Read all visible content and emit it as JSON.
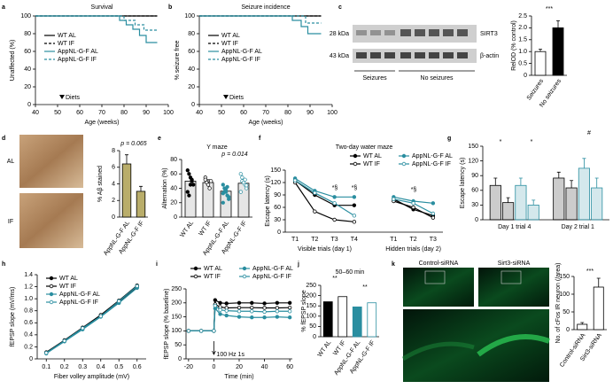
{
  "chart_data": [
    {
      "panel": "a",
      "type": "line",
      "title": "Survival",
      "xlabel": "Age (weeks)",
      "ylabel": "Unaffected (%)",
      "xlim": [
        40,
        100
      ],
      "xticks": [
        40,
        50,
        60,
        70,
        80,
        90,
        100
      ],
      "ylim": [
        0,
        100
      ],
      "yticks": [
        0,
        20,
        40,
        60,
        80,
        100
      ],
      "annotation": {
        "text": "Diets",
        "x": 52
      },
      "series": [
        {
          "name": "WT AL",
          "color": "#000000",
          "dash": false,
          "x": [
            40,
            95
          ],
          "values": [
            100,
            100
          ]
        },
        {
          "name": "WT IF",
          "color": "#000000",
          "dash": true,
          "x": [
            40,
            95
          ],
          "values": [
            100,
            100
          ]
        },
        {
          "name": "AppNL-G-F AL",
          "color": "#2a8ea0",
          "dash": false,
          "x": [
            40,
            78,
            78,
            81,
            81,
            84,
            84,
            87,
            87,
            90,
            90,
            95
          ],
          "values": [
            100,
            100,
            95,
            95,
            90,
            90,
            85,
            85,
            78,
            78,
            70,
            70
          ]
        },
        {
          "name": "AppNL-G-F IF",
          "color": "#2a8ea0",
          "dash": true,
          "x": [
            40,
            80,
            80,
            85,
            85,
            89,
            89,
            95
          ],
          "values": [
            100,
            100,
            95,
            95,
            90,
            90,
            84,
            84
          ]
        }
      ]
    },
    {
      "panel": "b",
      "type": "line",
      "title": "Seizure incidence",
      "xlabel": "Age (weeks)",
      "ylabel": "% seizure free",
      "xlim": [
        40,
        100
      ],
      "xticks": [
        40,
        50,
        60,
        70,
        80,
        90,
        100
      ],
      "ylim": [
        0,
        100
      ],
      "yticks": [
        0,
        20,
        40,
        60,
        80,
        100
      ],
      "annotation": {
        "text": "Diets",
        "x": 52
      },
      "series": [
        {
          "name": "WT AL",
          "color": "#000000",
          "dash": false,
          "x": [
            40,
            95
          ],
          "values": [
            100,
            100
          ]
        },
        {
          "name": "WT IF",
          "color": "#000000",
          "dash": true,
          "x": [
            40,
            95
          ],
          "values": [
            100,
            100
          ]
        },
        {
          "name": "AppNL-G-F AL",
          "color": "#2a8ea0",
          "dash": false,
          "x": [
            40,
            82,
            82,
            86,
            86,
            89,
            89,
            95
          ],
          "values": [
            100,
            100,
            95,
            95,
            88,
            88,
            80,
            80
          ]
        },
        {
          "name": "AppNL-G-F IF",
          "color": "#2a8ea0",
          "dash": true,
          "x": [
            40,
            88,
            88,
            95
          ],
          "values": [
            100,
            100,
            92,
            92
          ]
        }
      ]
    },
    {
      "panel": "c",
      "type": "bar",
      "image_labels": [
        "28 kDa",
        "43 kDa",
        "SIRT3",
        "β-actin",
        "Seizures",
        "No seizures"
      ],
      "ylabel": "RelOD (% control)",
      "ylim": [
        0,
        2.5
      ],
      "yticks": [
        0,
        0.5,
        {
          "value": 1,
          "label": "1.0"
        },
        1.5,
        {
          "value": 2,
          "label": "2.0"
        },
        2.5
      ],
      "categories": [
        "Seizures",
        "No seizures"
      ],
      "values": [
        1,
        2
      ],
      "errors": [
        0.1,
        0.3
      ],
      "colors": [
        "#ffffff",
        "#000000"
      ],
      "rotate_labels": true,
      "annotations": [
        "***"
      ]
    },
    {
      "panel": "d",
      "type": "bar",
      "image_labels": [
        "AL",
        "IF"
      ],
      "ylabel": "% Aβ stained",
      "ylim": [
        0,
        8
      ],
      "yticks": [
        0,
        2,
        4,
        6,
        8
      ],
      "categories": [
        "AppNL-G-F AL",
        "AppNL-G-F IF"
      ],
      "values": [
        6.4,
        3.1
      ],
      "errors": [
        1.1,
        0.6
      ],
      "colors": [
        "#b9ad6a",
        "#b9ad6a"
      ],
      "rotate_labels": true,
      "annotations": [
        "p = 0.065"
      ]
    },
    {
      "panel": "e",
      "type": "bar",
      "title": "Y maze",
      "ylabel": "Alternation (%)",
      "ylim": [
        0,
        80
      ],
      "yticks": [
        0,
        20,
        40,
        60,
        80
      ],
      "categories": [
        "WT AL",
        "WT IF",
        "AppNL-G-F AL",
        "AppNL-G-F IF"
      ],
      "values": [
        50,
        48,
        36,
        47
      ],
      "errors": [
        5,
        4,
        4,
        4
      ],
      "colors": [
        "#e6e6e6",
        "#e6e6e6",
        "#e6e6e6",
        "#e6e6e6"
      ],
      "point_colors": [
        "#000000",
        "#ffffff",
        "#2a8ea0",
        "#ffffff"
      ],
      "point_edges": [
        "#000000",
        "#000000",
        "#2a8ea0",
        "#2a8ea0"
      ],
      "points": [
        [
          65,
          60,
          55,
          50,
          45,
          35,
          30,
          45,
          52
        ],
        [
          55,
          48,
          45,
          40,
          50,
          52
        ],
        [
          45,
          40,
          35,
          30,
          25,
          20,
          35,
          38,
          42,
          28,
          33
        ],
        [
          60,
          55,
          50,
          45,
          40,
          35,
          50,
          48,
          52,
          44
        ]
      ],
      "rotate_labels": true,
      "annotations": [
        "p = 0.014"
      ]
    },
    {
      "panel": "f",
      "type": "line",
      "title": "Two-day water maze",
      "ylabel": "Escape latency (s)",
      "ylim": [
        0,
        150
      ],
      "yticks": [
        0,
        30,
        60,
        90,
        120,
        150
      ],
      "categories": [
        "T1",
        "T2",
        "T3",
        "T4",
        null,
        "T1",
        "T2",
        "T3"
      ],
      "groups": [
        "Visible trials (day 1)",
        "Hidden trials (day 2)"
      ],
      "annotations": [
        "*§",
        "*§",
        "*§"
      ],
      "series": [
        {
          "name": "WT AL",
          "color": "#000000",
          "dash": false,
          "marker": "circle",
          "values": [
            125,
            90,
            65,
            65,
            null,
            80,
            55,
            40
          ]
        },
        {
          "name": "WT IF",
          "color": "#000000",
          "dash": false,
          "marker": "circle-open",
          "values": [
            120,
            50,
            30,
            25,
            null,
            75,
            60,
            35
          ]
        },
        {
          "name": "AppNL-G-F AL",
          "color": "#2a8ea0",
          "dash": false,
          "marker": "circle",
          "values": [
            130,
            100,
            85,
            85,
            null,
            85,
            75,
            70
          ]
        },
        {
          "name": "AppNL-G-F IF",
          "color": "#2a8ea0",
          "dash": false,
          "marker": "circle-open",
          "values": [
            125,
            95,
            70,
            40,
            null,
            80,
            70,
            45
          ]
        }
      ]
    },
    {
      "panel": "g",
      "type": "bar",
      "ylabel": "Escape latency (s)",
      "ylim": [
        0,
        150
      ],
      "yticks": [
        0,
        30,
        60,
        90,
        120,
        150
      ],
      "categories": [
        "Day 1 trial 4",
        "Day 2 trial 1"
      ],
      "annotations": [
        "*",
        "*",
        "#"
      ],
      "series": [
        {
          "name": "WT AL",
          "color": "#000000",
          "values": [
            70,
            85
          ],
          "errors": [
            15,
            12
          ]
        },
        {
          "name": "WT IF",
          "color": "#000000",
          "values": [
            35,
            65
          ],
          "errors": [
            10,
            15
          ]
        },
        {
          "name": "AppNL-G-F AL",
          "color": "#2a8ea0",
          "values": [
            70,
            105
          ],
          "errors": [
            15,
            20
          ]
        },
        {
          "name": "AppNL-G-F IF",
          "color": "#2a8ea0",
          "values": [
            30,
            65
          ],
          "errors": [
            10,
            20
          ]
        }
      ]
    },
    {
      "panel": "h",
      "type": "line",
      "xlabel": "Fiber volley amplitude (mV)",
      "ylabel": "fEPSP slope (mV/ms)",
      "xlim": [
        0.05,
        0.65
      ],
      "xticks": [
        0.1,
        0.2,
        0.3,
        0.4,
        0.5,
        0.6
      ],
      "ylim": [
        0,
        1.4
      ],
      "yticks": [
        0,
        0.2,
        0.4,
        0.6,
        0.8,
        {
          "value": 1,
          "label": "1.0"
        },
        1.2,
        1.4
      ],
      "series": [
        {
          "name": "WT AL",
          "color": "#000000",
          "dash": false,
          "marker": "circle",
          "x": [
            0.1,
            0.2,
            0.3,
            0.4,
            0.5,
            0.6
          ],
          "values": [
            0.1,
            0.3,
            0.5,
            0.72,
            0.95,
            1.2
          ]
        },
        {
          "name": "WT IF",
          "color": "#000000",
          "dash": false,
          "marker": "circle-open",
          "x": [
            0.1,
            0.2,
            0.3,
            0.4,
            0.5,
            0.6
          ],
          "values": [
            0.11,
            0.31,
            0.52,
            0.73,
            0.97,
            1.22
          ]
        },
        {
          "name": "AppNL-G-F AL",
          "color": "#2a8ea0",
          "dash": false,
          "marker": "circle",
          "x": [
            0.1,
            0.2,
            0.3,
            0.4,
            0.5,
            0.6
          ],
          "values": [
            0.09,
            0.29,
            0.49,
            0.7,
            0.93,
            1.18
          ]
        },
        {
          "name": "AppNL-G-F IF",
          "color": "#2a8ea0",
          "dash": false,
          "marker": "circle-open",
          "x": [
            0.1,
            0.2,
            0.3,
            0.4,
            0.5,
            0.6
          ],
          "values": [
            0.1,
            0.3,
            0.51,
            0.71,
            0.96,
            1.21
          ]
        }
      ]
    },
    {
      "panel": "i",
      "type": "line",
      "xlabel": "Time (min)",
      "ylabel": "fEPSP slope (% baseline)",
      "xlim": [
        -22,
        62
      ],
      "xticks": [
        -20,
        0,
        20,
        40,
        60
      ],
      "ylim": [
        0,
        250
      ],
      "yticks": [
        0,
        50,
        100,
        150,
        200,
        250
      ],
      "annotation": {
        "text": "100 Hz 1s",
        "x": 0
      },
      "series": [
        {
          "name": "WT AL",
          "color": "#000000",
          "dash": false,
          "marker": "circle",
          "x": [
            -20,
            -10,
            0,
            1,
            5,
            10,
            20,
            30,
            40,
            50,
            60
          ],
          "values": [
            100,
            100,
            100,
            210,
            200,
            198,
            200,
            200,
            198,
            200,
            200
          ]
        },
        {
          "name": "WT IF",
          "color": "#000000",
          "dash": false,
          "marker": "circle-open",
          "x": [
            -20,
            -10,
            0,
            1,
            5,
            10,
            20,
            30,
            40,
            50,
            60
          ],
          "values": [
            100,
            100,
            100,
            195,
            185,
            182,
            183,
            183,
            182,
            182,
            183
          ]
        },
        {
          "name": "AppNL-G-F AL",
          "color": "#2a8ea0",
          "dash": false,
          "marker": "circle",
          "x": [
            -20,
            -10,
            0,
            1,
            5,
            10,
            20,
            30,
            40,
            50,
            60
          ],
          "values": [
            100,
            100,
            100,
            180,
            160,
            155,
            150,
            148,
            148,
            150,
            148
          ]
        },
        {
          "name": "AppNL-G-F IF",
          "color": "#2a8ea0",
          "dash": false,
          "marker": "circle-open",
          "x": [
            -20,
            -10,
            0,
            1,
            5,
            10,
            20,
            30,
            40,
            50,
            60
          ],
          "values": [
            100,
            100,
            100,
            190,
            175,
            172,
            170,
            170,
            168,
            170,
            170
          ]
        }
      ]
    },
    {
      "panel": "j",
      "type": "bar",
      "title": "50–60 min",
      "ylabel": "% fEPSP slope",
      "ylim": [
        0,
        250
      ],
      "yticks": [
        0,
        50,
        100,
        150,
        200,
        250
      ],
      "categories": [
        "WT AL",
        "WT IF",
        "AppNL-G-F AL",
        "AppNL-G-F IF"
      ],
      "values": [
        170,
        195,
        145,
        165
      ],
      "colors": [
        "#000000",
        "#ffffff",
        "#2a8ea0",
        "#ffffff"
      ],
      "edge_colors": [
        "#000000",
        "#000000",
        "#2a8ea0",
        "#2a8ea0"
      ],
      "rotate_labels": true,
      "annotations": [
        "**",
        "**"
      ]
    },
    {
      "panel": "k",
      "type": "bar",
      "image_labels": [
        "Control-siRNA",
        "Sirt3-siRNA"
      ],
      "ylabel": "No. of cFos IR neuron (/area)",
      "ylim": [
        0,
        150
      ],
      "yticks": [
        0,
        50,
        100,
        150
      ],
      "categories": [
        "Control-siRNA",
        "Sirt3-siRNA"
      ],
      "values": [
        15,
        120
      ],
      "errors": [
        5,
        25
      ],
      "colors": [
        "#ffffff",
        "#ffffff"
      ],
      "rotate_labels": true,
      "annotations": [
        "***"
      ]
    }
  ]
}
